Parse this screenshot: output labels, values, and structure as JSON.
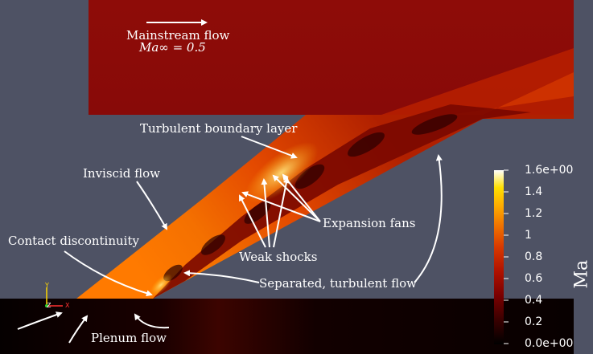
{
  "annotations": {
    "mainstream_flow": "Mainstream flow",
    "mach_inf": "Ma∞ = 0.5",
    "turbulent_bl": "Turbulent boundary layer",
    "inviscid_flow": "Inviscid flow",
    "expansion_fans": "Expansion fans",
    "contact_discontinuity": "Contact discontinuity",
    "weak_shocks": "Weak shocks",
    "separated_flow": "Separated, turbulent flow",
    "plenum_flow": "Plenum flow"
  },
  "colorbar": {
    "title": "Ma",
    "range": [
      0.0,
      1.6
    ],
    "ticks": [
      "1.6e+00",
      "1.4",
      "1.2",
      "1",
      "0.8",
      "0.6",
      "0.4",
      "0.2",
      "0.0e+00"
    ],
    "colors": [
      "#000000",
      "#3a0000",
      "#7a0000",
      "#b01200",
      "#d83a00",
      "#f07200",
      "#ffae00",
      "#ffe000",
      "#ffffff"
    ]
  },
  "orientation_axes": {
    "y": "Y",
    "z": "Z",
    "x": "X"
  },
  "palette": {
    "background": "#4e5264",
    "mainstream": "#8c0a08",
    "plenum": "#0a0000"
  }
}
